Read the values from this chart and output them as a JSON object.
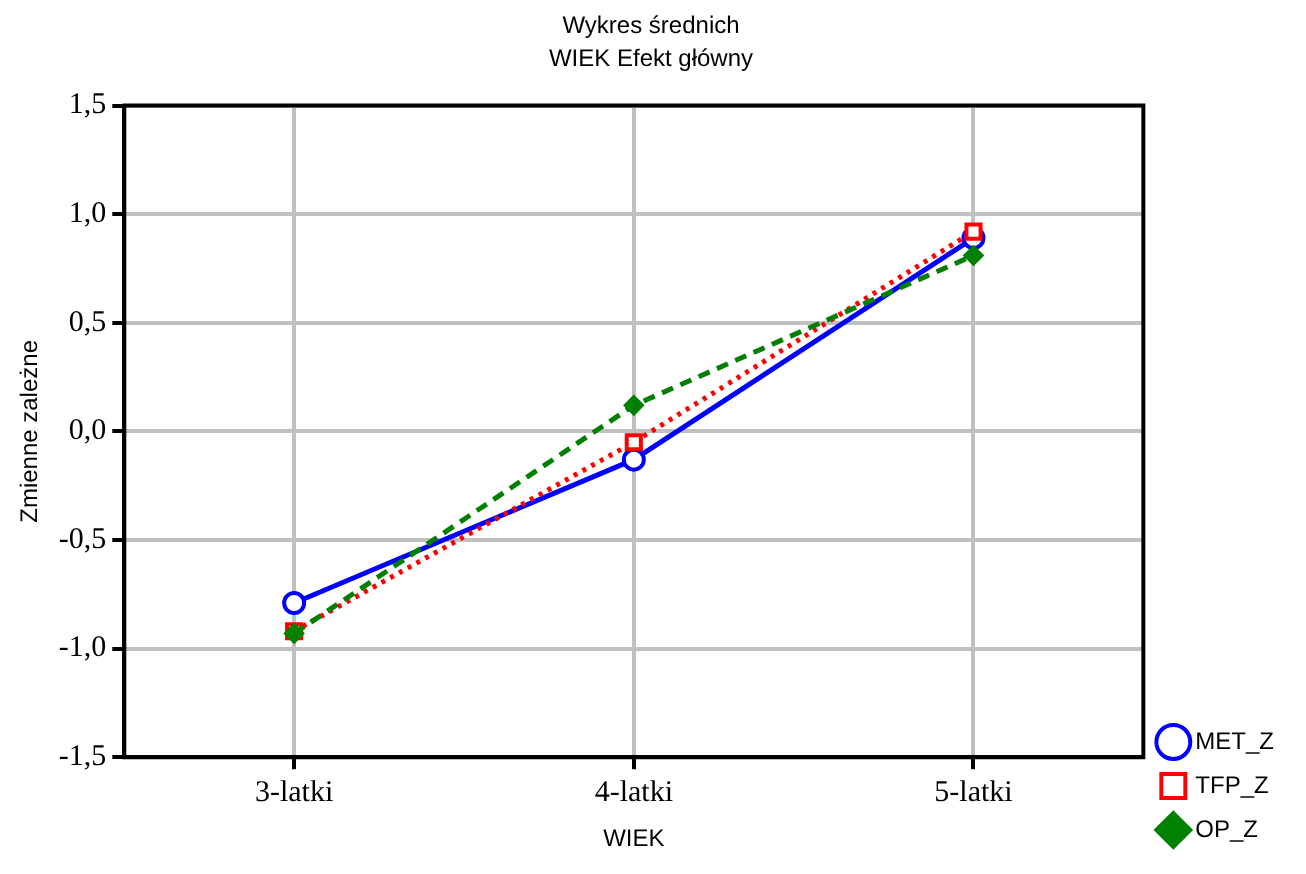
{
  "chart_data": {
    "type": "line",
    "title": "Wykres średnich",
    "subtitle": "WIEK Efekt główny",
    "xlabel": "WIEK",
    "ylabel": "Zmienne zależne",
    "categories": [
      "3-latki",
      "4-latki",
      "5-latki"
    ],
    "series": [
      {
        "name": "MET_Z",
        "color": "#0000ff",
        "values": [
          -0.79,
          -0.13,
          0.89
        ],
        "marker": "circle",
        "line_style": "solid"
      },
      {
        "name": "TFP_Z",
        "color": "#ff0000",
        "values": [
          -0.92,
          -0.05,
          0.92
        ],
        "marker": "square",
        "line_style": "dotted"
      },
      {
        "name": "OP_Z",
        "color": "#008000",
        "values": [
          -0.93,
          0.12,
          0.81
        ],
        "marker": "diamond",
        "line_style": "dashed"
      }
    ],
    "ylim": [
      -1.5,
      1.5
    ],
    "yticks": [
      {
        "value": -1.5,
        "label": "-1,5"
      },
      {
        "value": -1,
        "label": "-1,0"
      },
      {
        "value": -0.5,
        "label": "-0,5"
      },
      {
        "value": 0,
        "label": "0,0"
      },
      {
        "value": 0.5,
        "label": "0,5"
      },
      {
        "value": 1,
        "label": "1,0"
      },
      {
        "value": 1.5,
        "label": "1,5"
      }
    ],
    "grid": true,
    "legend": "bottom right"
  }
}
